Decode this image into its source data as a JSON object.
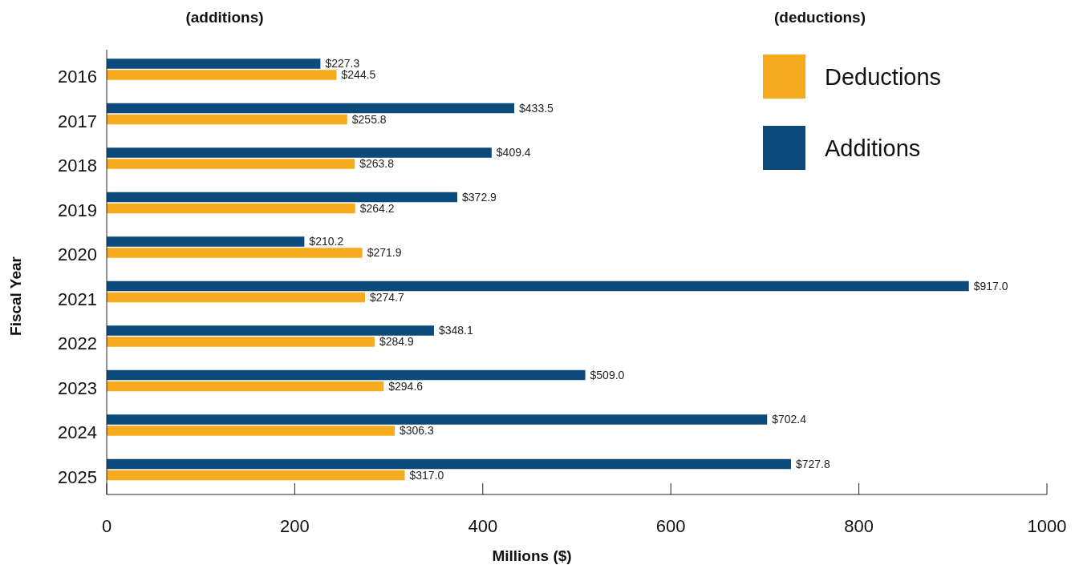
{
  "chart_data": {
    "type": "bar",
    "orientation": "horizontal",
    "xlabel": "Millions ($)",
    "ylabel": "Fiscal Year",
    "annotations": [
      "(additions)",
      "(deductions)"
    ],
    "categories": [
      "2016",
      "2017",
      "2018",
      "2019",
      "2020",
      "2021",
      "2022",
      "2023",
      "2024",
      "2025"
    ],
    "series": [
      {
        "name": "Additions",
        "color": "#0b4a7a",
        "values": [
          227.3,
          433.5,
          409.4,
          372.9,
          210.2,
          917.0,
          348.1,
          509.0,
          702.4,
          727.8
        ],
        "value_labels": [
          "$227.3",
          "$433.5",
          "$409.4",
          "$372.9",
          "$210.2",
          "$917.0",
          "$348.1",
          "$509.0",
          "$702.4",
          "$727.8"
        ]
      },
      {
        "name": "Deductions",
        "color": "#f6ab1e",
        "values": [
          244.5,
          255.8,
          263.8,
          264.2,
          271.9,
          274.7,
          284.9,
          294.6,
          306.3,
          317.0
        ],
        "value_labels": [
          "$244.5",
          "$255.8",
          "$263.8",
          "$264.2",
          "$271.9",
          "$274.7",
          "$284.9",
          "$294.6",
          "$306.3",
          "$317.0"
        ]
      }
    ],
    "xlim": [
      0,
      1000
    ],
    "xticks": [
      0,
      200,
      400,
      600,
      800,
      1000
    ],
    "grid": false,
    "legend": "top right"
  }
}
